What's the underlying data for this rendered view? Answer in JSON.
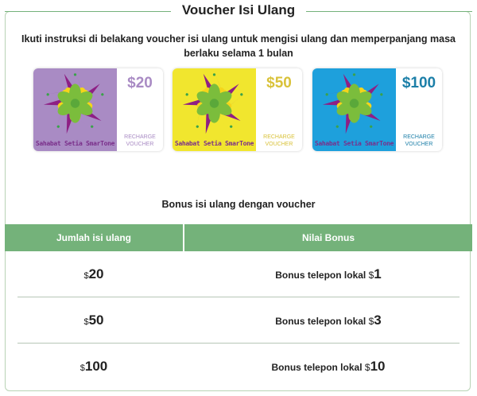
{
  "title": "Voucher Isi Ulang",
  "intro": "Ikuti instruksi di belakang voucher isi ulang untuk mengisi ulang dan memperpanjang masa berlaku selama 1 bulan",
  "vouchers": [
    {
      "amount": "$20",
      "brand": "Sahabat Setia SmarTone",
      "label1": "RECHARGE",
      "label2": "VOUCHER",
      "bg": "#a98bc4",
      "accent": "#a98bc4",
      "brand_color": "#7a2f8a"
    },
    {
      "amount": "$50",
      "brand": "Sahabat Setia SmarTone",
      "label1": "RECHARGE",
      "label2": "VOUCHER",
      "bg": "#f1e62e",
      "accent": "#d9c23a",
      "brand_color": "#7a2f8a"
    },
    {
      "amount": "$100",
      "brand": "Sahabat Setia SmarTone",
      "label1": "RECHARGE",
      "label2": "VOUCHER",
      "bg": "#1ea0dc",
      "accent": "#1c7fa8",
      "brand_color": "#7a2f8a"
    }
  ],
  "bonus_heading": "Bonus isi ulang dengan voucher",
  "table": {
    "headers": [
      "Jumlah isi ulang",
      "Nilai Bonus"
    ],
    "header_color": "#74b27a",
    "rows": [
      {
        "currency": "$",
        "amount": "20",
        "bonus_text": "Bonus telepon lokal ",
        "bonus_currency": "$",
        "bonus_amount": "1"
      },
      {
        "currency": "$",
        "amount": "50",
        "bonus_text": "Bonus telepon lokal ",
        "bonus_currency": "$",
        "bonus_amount": "3"
      },
      {
        "currency": "$",
        "amount": "100",
        "bonus_text": "Bonus telepon lokal ",
        "bonus_currency": "$",
        "bonus_amount": "10"
      }
    ]
  }
}
